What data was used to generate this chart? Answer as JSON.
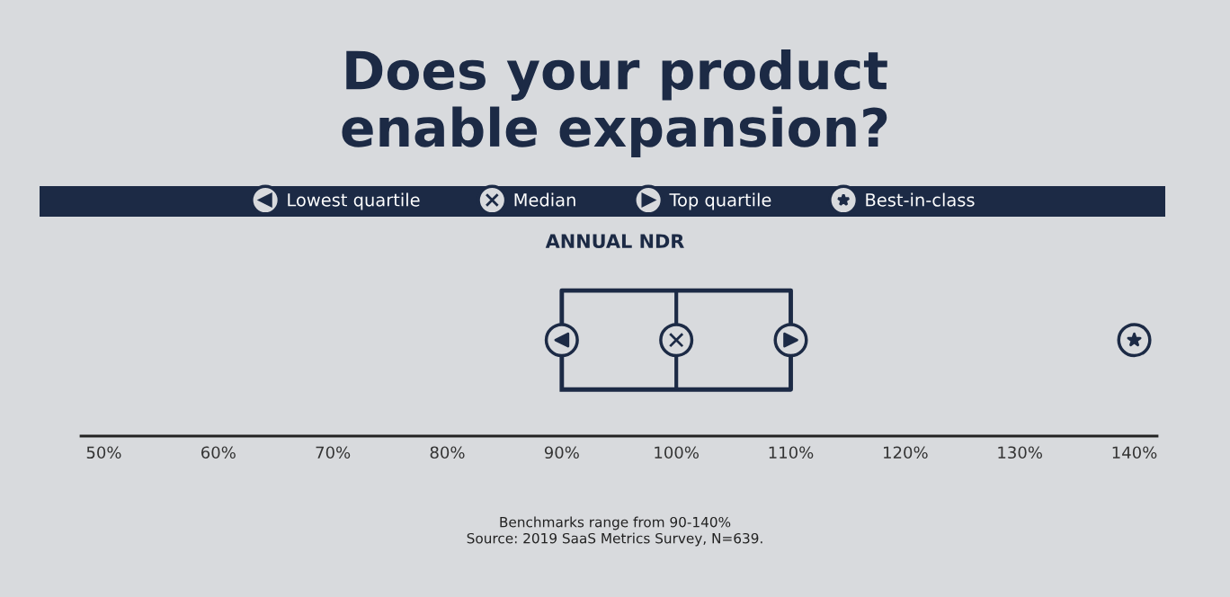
{
  "chart_data": {
    "type": "box",
    "title": "Does your product\nenable expansion?",
    "subtitle": "ANNUAL NDR",
    "orientation": "horizontal",
    "categories": [
      null
    ],
    "boxes": [
      {
        "low": 90,
        "q1": 90,
        "median": 100,
        "q3": 110,
        "high": 110
      }
    ],
    "color": "#1c2a45",
    "series": [
      {
        "name": "Lowest quartile",
        "type": "scatter",
        "marker": "circle",
        "color": "#1c2a45",
        "values": [
          90
        ]
      },
      {
        "name": "Median",
        "type": "scatter",
        "marker": "circle",
        "color": "#1c2a45",
        "values": [
          100
        ]
      },
      {
        "name": "Top quartile",
        "type": "scatter",
        "marker": "circle",
        "color": "#1c2a45",
        "values": [
          110
        ]
      },
      {
        "name": "Best-in-class",
        "type": "scatter",
        "marker": "circle",
        "color": "#1c2a45",
        "values": [
          140
        ]
      }
    ],
    "xlim": [
      48,
      142
    ],
    "xticks": [
      {
        "value": 50,
        "label": "50%"
      },
      {
        "value": 60,
        "label": "60%"
      },
      {
        "value": 70,
        "label": "70%"
      },
      {
        "value": 80,
        "label": "80%"
      },
      {
        "value": 90,
        "label": "90%"
      },
      {
        "value": 100,
        "label": "100%"
      },
      {
        "value": 110,
        "label": "110%"
      },
      {
        "value": 120,
        "label": "120%"
      },
      {
        "value": 130,
        "label": "130%"
      },
      {
        "value": 140,
        "label": "140%"
      }
    ],
    "grid": false,
    "legend": "top",
    "annotations": [
      "Benchmarks range from 90-140%",
      "Source: 2019 SaaS Metrics Survey, N=639."
    ]
  }
}
